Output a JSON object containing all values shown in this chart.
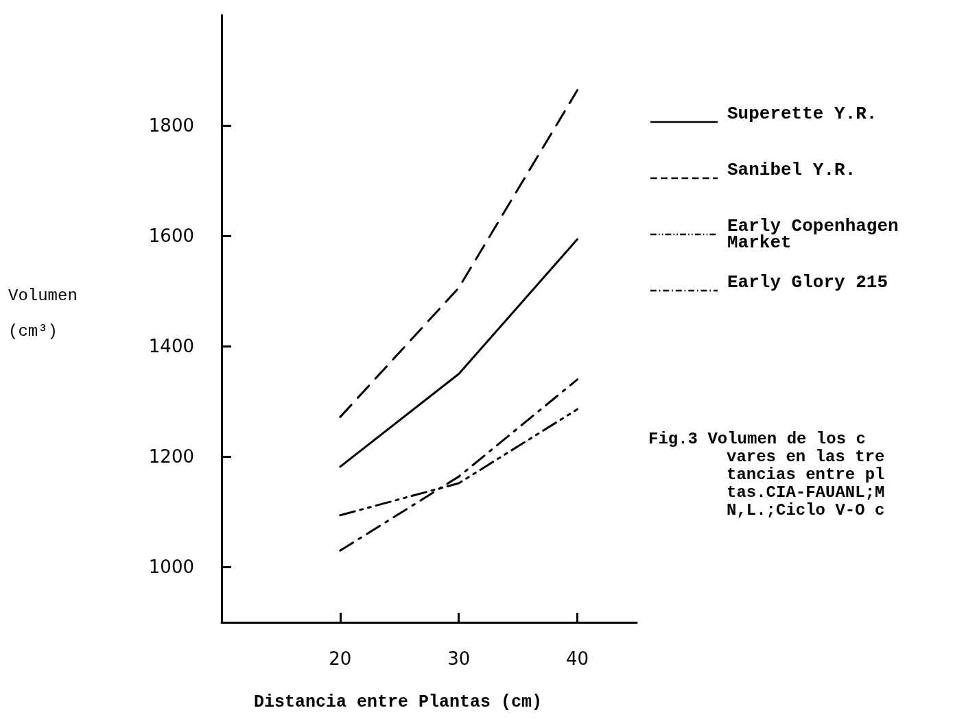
{
  "chart_data": {
    "type": "line",
    "xlabel": "Distancia entre Plantas (cm)",
    "ylabel": "Volumen (cm³)",
    "x": [
      20,
      30,
      40
    ],
    "xlim": [
      10,
      45
    ],
    "xticks": [
      20,
      30,
      40
    ],
    "ylim": [
      900,
      2000
    ],
    "yticks": [
      1000,
      1200,
      1400,
      1600,
      1800
    ],
    "series": [
      {
        "name": "Superette Y.R.",
        "color": "#000000",
        "line_style": "solid",
        "values": [
          1182,
          1350,
          1594
        ]
      },
      {
        "name": "Sanibel Y.R.",
        "color": "#000000",
        "line_style": "dashed",
        "values": [
          1272,
          1506,
          1864
        ]
      },
      {
        "name": "Early Copenhagen Market",
        "color": "#000000",
        "line_style": "dashdotdot",
        "values": [
          1094,
          1152,
          1286
        ]
      },
      {
        "name": "Early Glory 215",
        "color": "#000000",
        "line_style": "dashdot",
        "values": [
          1030,
          1164,
          1340
        ]
      }
    ],
    "legend": "right",
    "grid": false,
    "marker": "none",
    "annotations": [
      "Fig.3 Volumen de los c",
      "vares en las tre",
      "tancias entre pl",
      "tas.CIA-FAUANL;M",
      "N,L.;Ciclo V-O c"
    ]
  }
}
